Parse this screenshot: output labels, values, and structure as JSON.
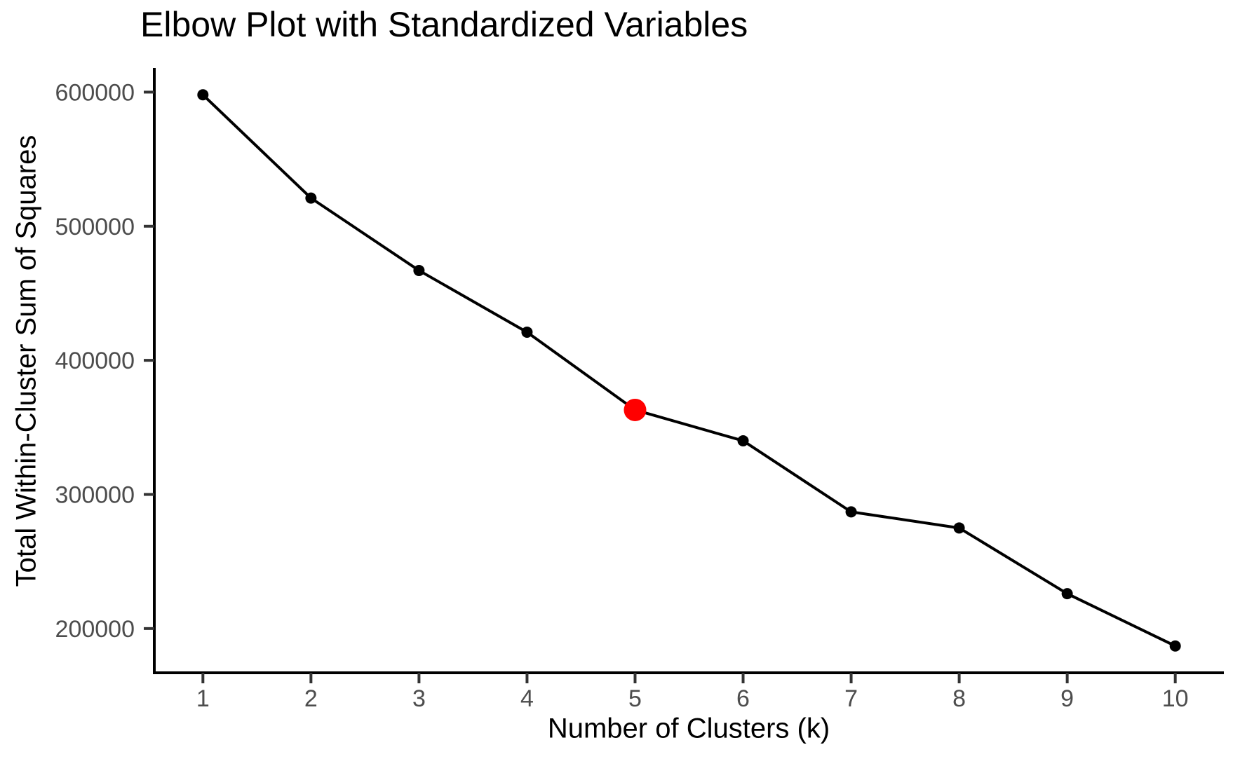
{
  "chart_data": {
    "type": "line",
    "title": "Elbow Plot with Standardized Variables",
    "xlabel": "Number of Clusters (k)",
    "ylabel": "Total Within-Cluster Sum of Squares",
    "x": [
      1,
      2,
      3,
      4,
      5,
      6,
      7,
      8,
      9,
      10
    ],
    "y": [
      598000,
      521000,
      467000,
      421000,
      363000,
      340000,
      287000,
      275000,
      226000,
      187000
    ],
    "series": [
      {
        "name": "Total within-cluster sum of squares",
        "values": [
          598000,
          521000,
          467000,
          421000,
          363000,
          340000,
          287000,
          275000,
          226000,
          187000
        ]
      }
    ],
    "highlighted_point": {
      "x": 5,
      "y": 363000,
      "color": "#FF0000"
    },
    "xticks": [
      1,
      2,
      3,
      4,
      5,
      6,
      7,
      8,
      9,
      10
    ],
    "xtick_labels": [
      "1",
      "2",
      "3",
      "4",
      "5",
      "6",
      "7",
      "8",
      "9",
      "10"
    ],
    "yticks": [
      200000,
      300000,
      400000,
      500000,
      600000
    ],
    "ytick_labels": [
      "200000",
      "300000",
      "400000",
      "500000",
      "600000"
    ],
    "xlim": [
      0.55,
      10.45
    ],
    "ylim": [
      167000,
      618000
    ],
    "grid": false,
    "legend": false,
    "colors": {
      "line": "#000000",
      "point": "#000000",
      "highlight": "#FF0000",
      "axis_line": "#000000",
      "tick_mark": "#333333",
      "tick_label": "#4D4D4D",
      "title_text": "#000000",
      "background": "#FFFFFF"
    }
  }
}
